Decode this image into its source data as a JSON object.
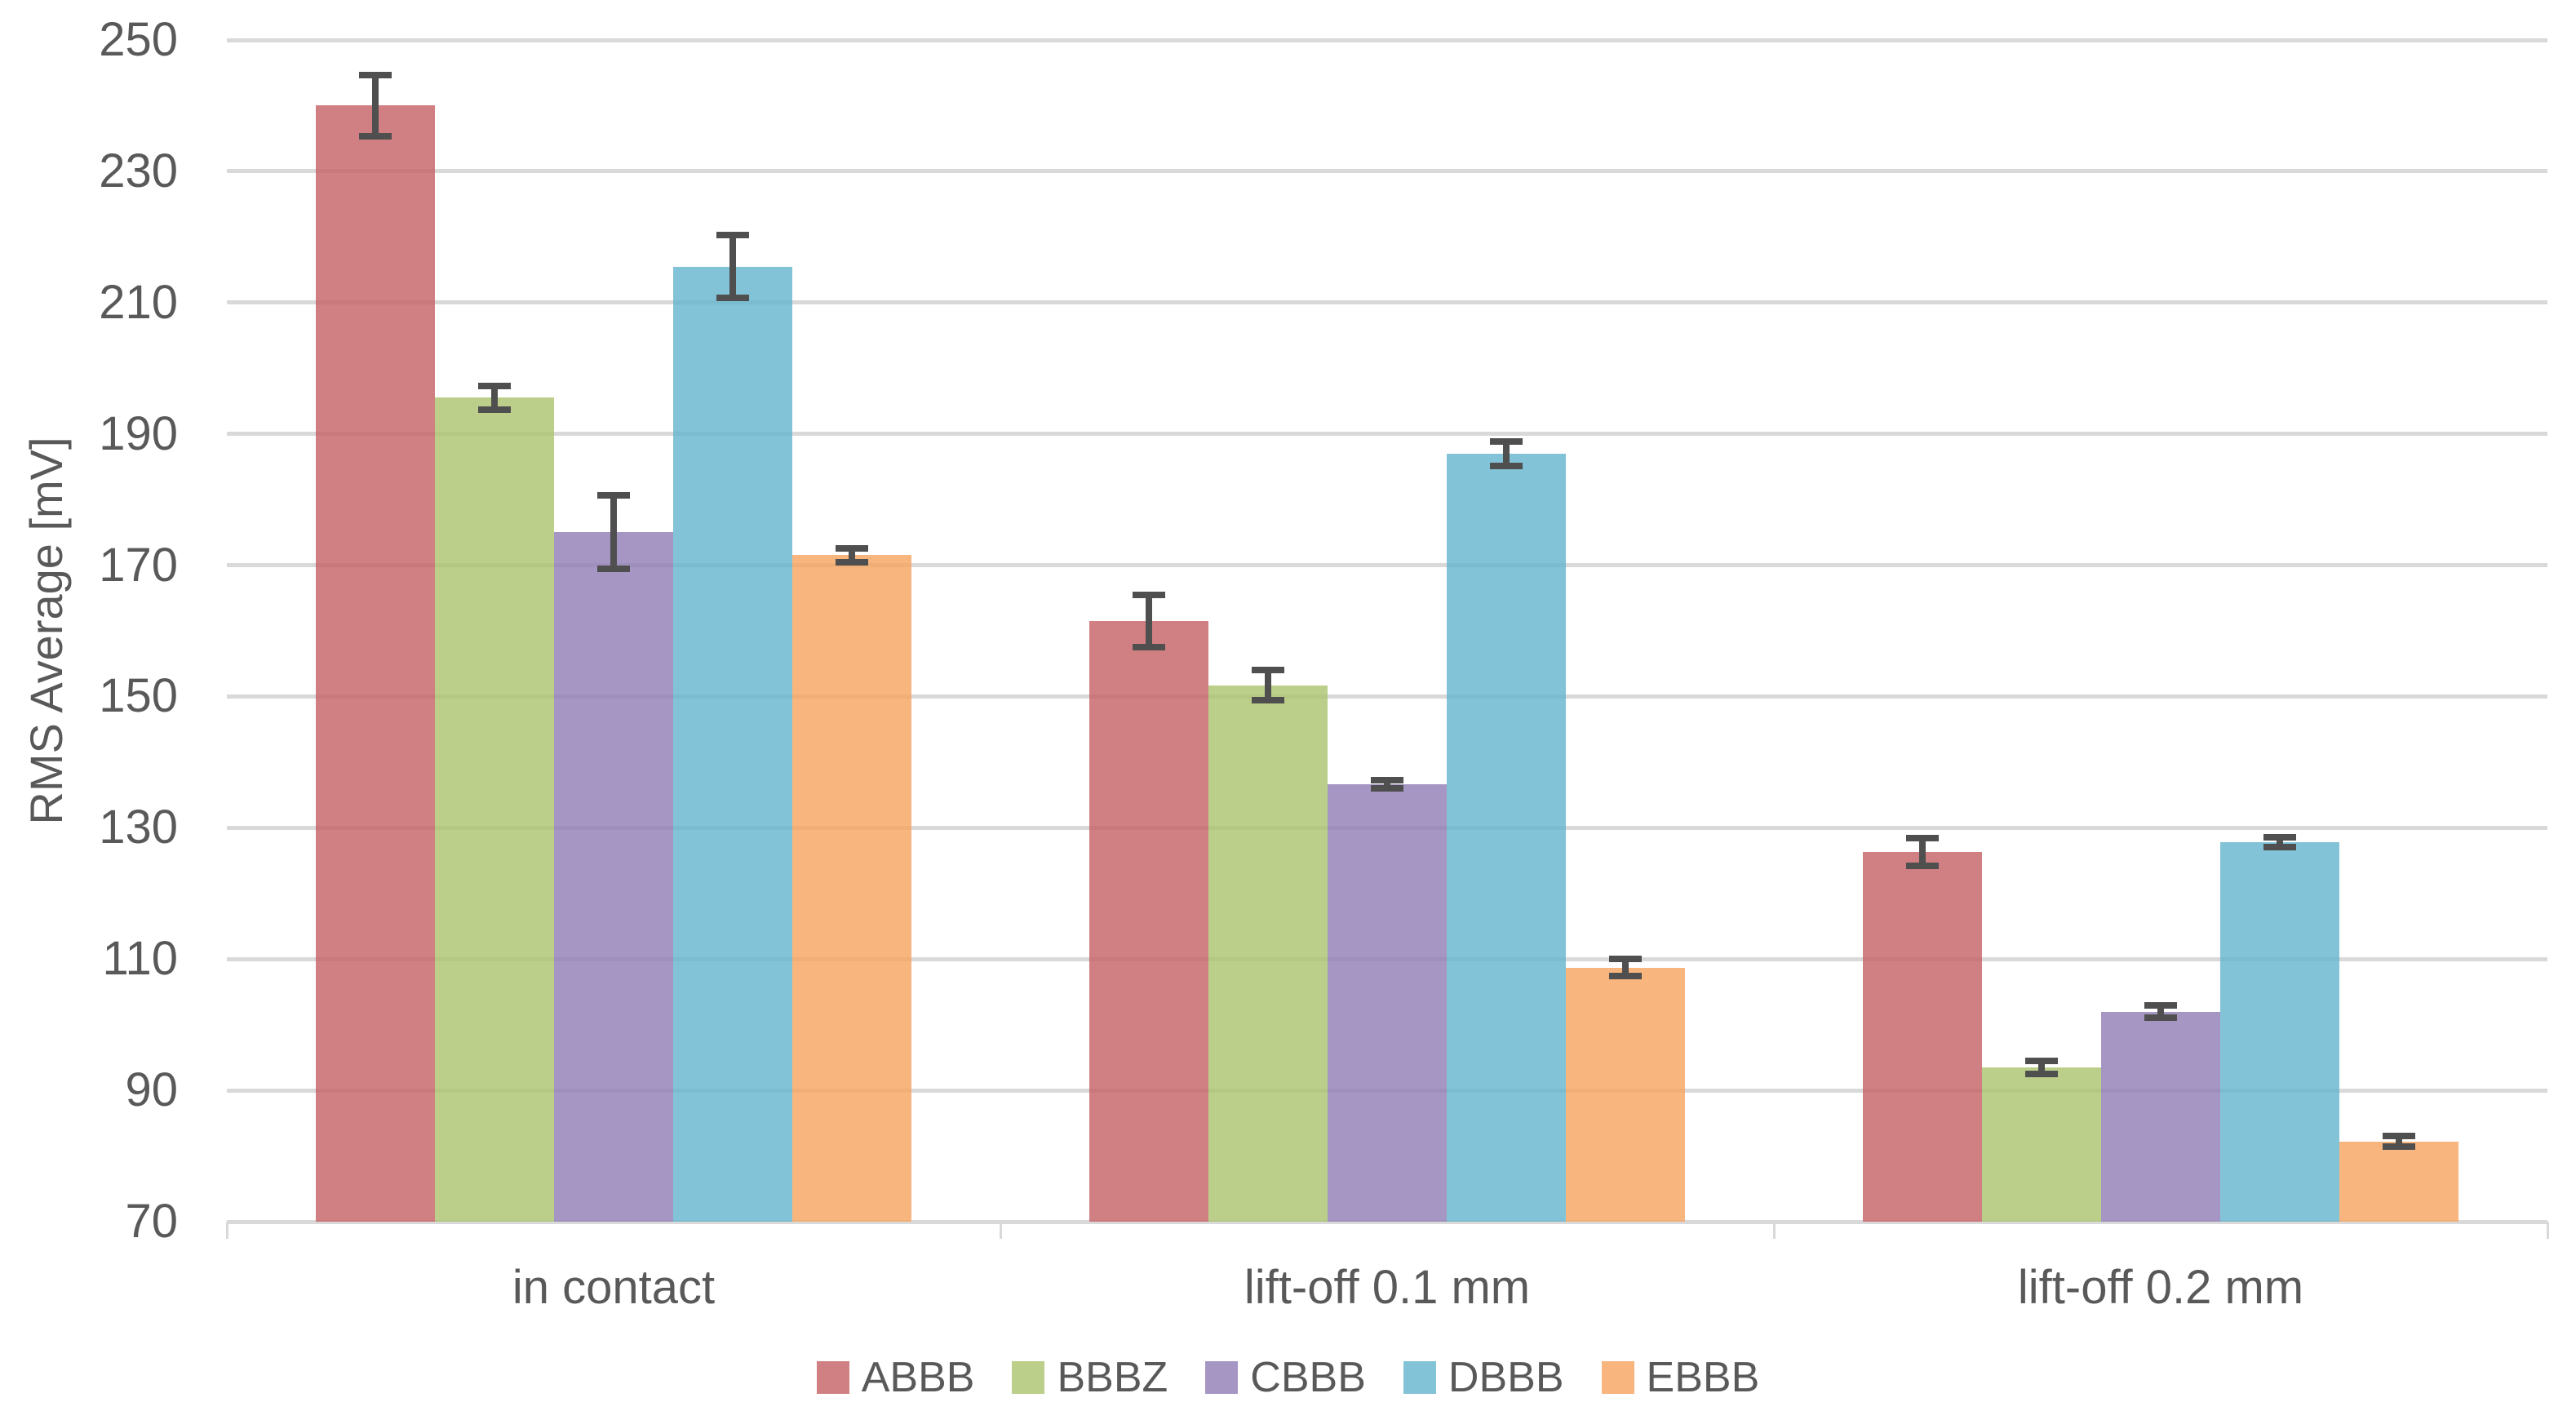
{
  "chart_data": {
    "type": "bar",
    "title": "",
    "xlabel": "",
    "ylabel": "RMS Average [mV]",
    "ylim": [
      70,
      250
    ],
    "yticks": [
      70,
      90,
      110,
      130,
      150,
      170,
      190,
      210,
      230,
      250
    ],
    "grid": true,
    "legend_position": "bottom",
    "background_color": "#ffffff",
    "gridline_color": "#d9d9d9",
    "text_color": "#595959",
    "error_bar_color": "#4f4f4f",
    "bar_fill_opacity": 0.8,
    "categories": [
      "in contact",
      "lift-off 0.1 mm",
      "lift-off 0.2 mm"
    ],
    "series": [
      {
        "name": "ABBB",
        "color": "#C46063",
        "values": [
          240.0,
          161.5,
          126.3
        ],
        "errors": [
          4.7,
          4.0,
          2.1
        ]
      },
      {
        "name": "BBBZ",
        "color": "#AAC36E",
        "values": [
          195.5,
          151.7,
          93.5
        ],
        "errors": [
          1.8,
          2.3,
          1.0
        ]
      },
      {
        "name": "CBBB",
        "color": "#8E7CB5",
        "values": [
          175.0,
          136.6,
          102.0
        ],
        "errors": [
          5.6,
          0.6,
          0.9
        ]
      },
      {
        "name": "DBBB",
        "color": "#63B4CE",
        "values": [
          215.5,
          187.0,
          127.8
        ],
        "errors": [
          4.8,
          1.9,
          0.7
        ]
      },
      {
        "name": "EBBB",
        "color": "#F7A25E",
        "values": [
          171.5,
          108.7,
          82.2
        ],
        "errors": [
          1.1,
          1.3,
          0.8
        ]
      }
    ]
  }
}
